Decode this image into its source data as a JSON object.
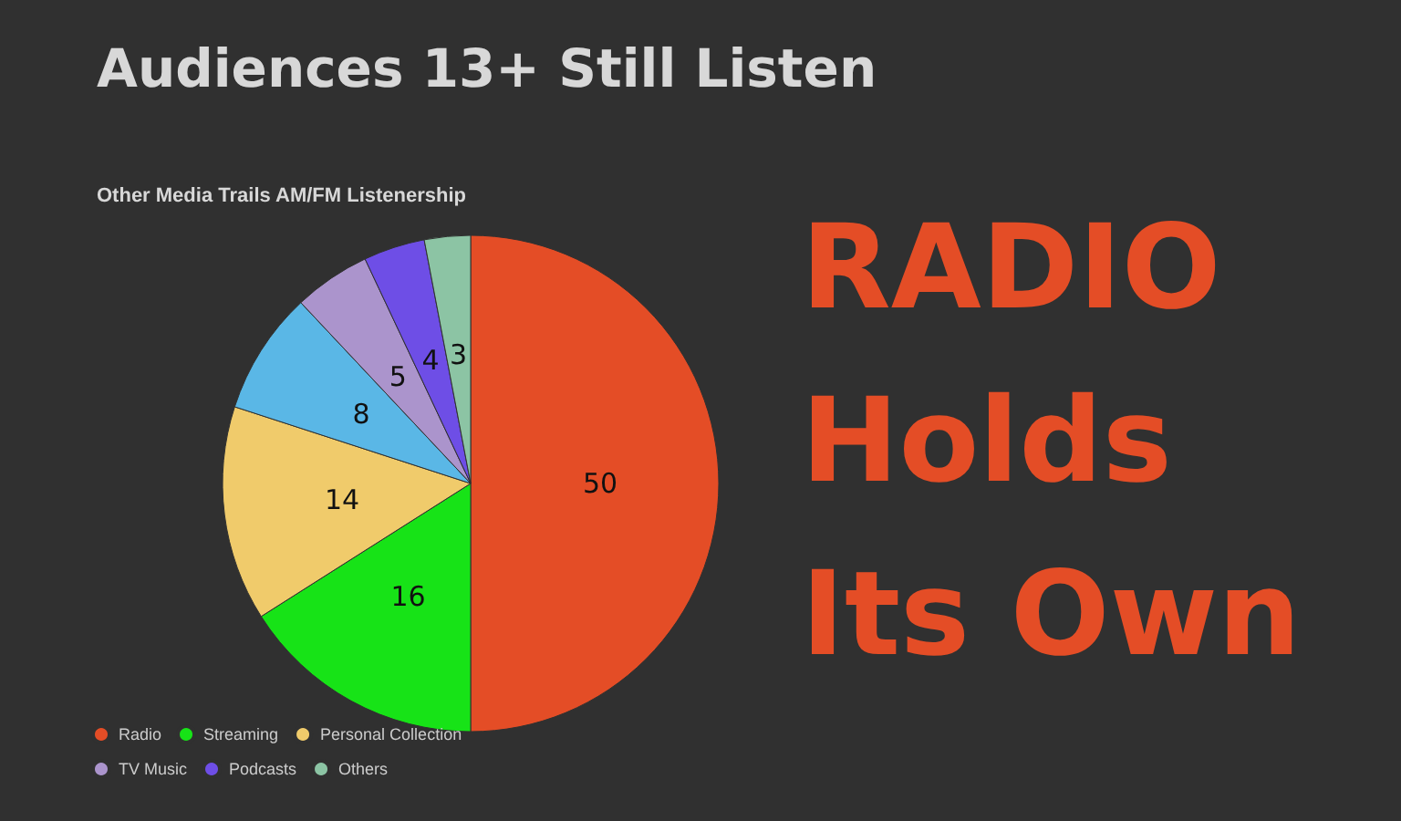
{
  "chart_data": {
    "type": "pie",
    "title": "Audiences 13+ Still Listen",
    "subtitle": "Other Media Trails AM/FM Listenership",
    "categories": [
      "Radio",
      "Streaming",
      "Personal Collection",
      null,
      "TV Music",
      "Podcasts",
      "Others"
    ],
    "values": [
      50,
      16,
      14,
      8,
      5,
      4,
      3
    ],
    "colors": [
      "#e44d26",
      "#17e317",
      "#f0cb6b",
      "#5ab7e6",
      "#ab94cc",
      "#6e4ee6",
      "#8cc4a4"
    ],
    "data_labels": true,
    "legend": "bottom left",
    "annotations": [
      "RADIO\nHolds\nIts Own"
    ]
  }
}
